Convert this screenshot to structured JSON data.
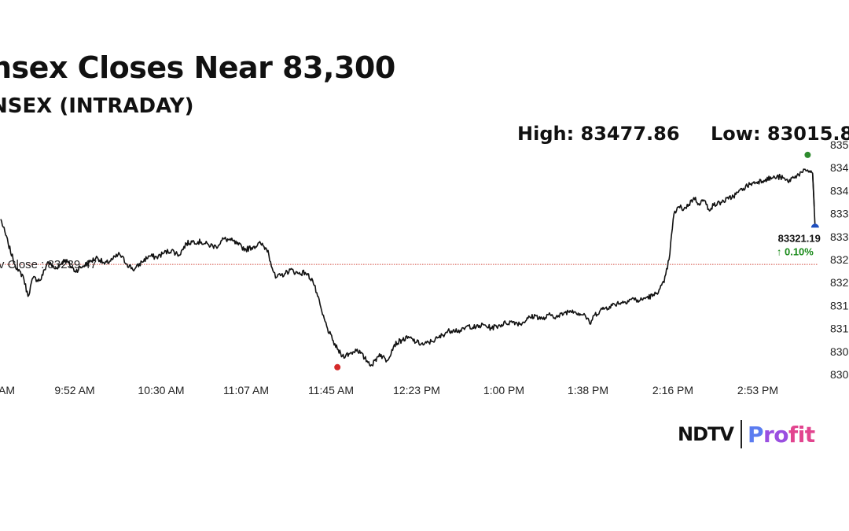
{
  "header": {
    "title": "nsex Closes Near 83,300",
    "subtitle": "NSEX (INTRADAY)",
    "high_label": "High: 83477.86",
    "low_label": "Low: 83015.8"
  },
  "brand": {
    "ndtv": "NDTV",
    "profit": "Profit"
  },
  "chart_data": {
    "type": "line",
    "x_tick_labels": [
      "AM",
      "9:52 AM",
      "10:30 AM",
      "11:07 AM",
      "11:45 AM",
      "12:23 PM",
      "1:00 PM",
      "1:38 PM",
      "2:16 PM",
      "2:53 PM"
    ],
    "y_tick_labels": [
      "835",
      "834",
      "834",
      "833",
      "833",
      "832",
      "832",
      "831",
      "831",
      "830",
      "830"
    ],
    "y_tick_values": [
      83500,
      83450,
      83400,
      83350,
      83300,
      83250,
      83200,
      83150,
      83100,
      83050,
      83000
    ],
    "ylim": [
      83000,
      83500
    ],
    "prev_close": {
      "label": "v Close : 83239.47",
      "value": 83239.47
    },
    "last": {
      "value_label": "83321.19",
      "change_label": "↑ 0.10%",
      "value": 83321.19
    },
    "high_value": 83477.86,
    "low_value": 83015.8,
    "series": [
      {
        "values": [
          [
            0,
            83338
          ],
          [
            3,
            83285
          ],
          [
            5,
            83250
          ],
          [
            7,
            83225
          ],
          [
            9,
            83215
          ],
          [
            11,
            83170
          ],
          [
            13,
            83210
          ],
          [
            16,
            83205
          ],
          [
            19,
            83245
          ],
          [
            22,
            83230
          ],
          [
            26,
            83250
          ],
          [
            30,
            83225
          ],
          [
            33,
            83235
          ],
          [
            36,
            83245
          ],
          [
            39,
            83255
          ],
          [
            42,
            83240
          ],
          [
            45,
            83250
          ],
          [
            48,
            83262
          ],
          [
            51,
            83240
          ],
          [
            54,
            83228
          ],
          [
            57,
            83245
          ],
          [
            60,
            83258
          ],
          [
            63,
            83255
          ],
          [
            66,
            83265
          ],
          [
            69,
            83270
          ],
          [
            72,
            83260
          ],
          [
            75,
            83285
          ],
          [
            78,
            83290
          ],
          [
            81,
            83288
          ],
          [
            84,
            83282
          ],
          [
            87,
            83278
          ],
          [
            90,
            83295
          ],
          [
            93,
            83292
          ],
          [
            96,
            83282
          ],
          [
            99,
            83272
          ],
          [
            102,
            83278
          ],
          [
            105,
            83285
          ],
          [
            108,
            83270
          ],
          [
            109,
            83245
          ],
          [
            111,
            83210
          ],
          [
            113,
            83215
          ],
          [
            115,
            83220
          ],
          [
            117,
            83228
          ],
          [
            120,
            83220
          ],
          [
            123,
            83222
          ],
          [
            126,
            83205
          ],
          [
            128,
            83170
          ],
          [
            130,
            83130
          ],
          [
            132,
            83100
          ],
          [
            134,
            83075
          ],
          [
            136,
            83055
          ],
          [
            138,
            83040
          ],
          [
            141,
            83045
          ],
          [
            144,
            83055
          ],
          [
            147,
            83035
          ],
          [
            150,
            83020
          ],
          [
            153,
            83045
          ],
          [
            156,
            83030
          ],
          [
            159,
            83065
          ],
          [
            162,
            83075
          ],
          [
            165,
            83080
          ],
          [
            168,
            83070
          ],
          [
            171,
            83065
          ],
          [
            174,
            83072
          ],
          [
            177,
            83080
          ],
          [
            180,
            83092
          ],
          [
            183,
            83098
          ],
          [
            186,
            83094
          ],
          [
            189,
            83106
          ],
          [
            192,
            83102
          ],
          [
            195,
            83108
          ],
          [
            198,
            83101
          ],
          [
            201,
            83106
          ],
          [
            204,
            83112
          ],
          [
            207,
            83115
          ],
          [
            210,
            83110
          ],
          [
            213,
            83122
          ],
          [
            216,
            83128
          ],
          [
            219,
            83120
          ],
          [
            222,
            83130
          ],
          [
            225,
            83125
          ],
          [
            228,
            83135
          ],
          [
            231,
            83140
          ],
          [
            234,
            83132
          ],
          [
            236,
            83130
          ],
          [
            238,
            83110
          ],
          [
            240,
            83130
          ],
          [
            243,
            83142
          ],
          [
            246,
            83148
          ],
          [
            249,
            83155
          ],
          [
            252,
            83158
          ],
          [
            255,
            83165
          ],
          [
            258,
            83160
          ],
          [
            261,
            83168
          ],
          [
            264,
            83172
          ],
          [
            266,
            83185
          ],
          [
            268,
            83200
          ],
          [
            270,
            83250
          ],
          [
            272,
            83350
          ],
          [
            274,
            83365
          ],
          [
            276,
            83360
          ],
          [
            278,
            83370
          ],
          [
            280,
            83385
          ],
          [
            282,
            83372
          ],
          [
            284,
            83380
          ],
          [
            286,
            83360
          ],
          [
            288,
            83368
          ],
          [
            291,
            83375
          ],
          [
            294,
            83382
          ],
          [
            297,
            83392
          ],
          [
            300,
            83405
          ],
          [
            303,
            83415
          ],
          [
            306,
            83420
          ],
          [
            309,
            83425
          ],
          [
            312,
            83428
          ],
          [
            315,
            83430
          ],
          [
            318,
            83420
          ],
          [
            321,
            83432
          ],
          [
            324,
            83440
          ],
          [
            326,
            83445
          ],
          [
            328,
            83438
          ],
          [
            329,
            83330
          ]
        ]
      }
    ],
    "colors": {
      "line": "#111111",
      "prev_close_line": "#d24a3c",
      "high_dot": "#2e8b2e",
      "low_dot": "#d42a2a",
      "last_marker": "#1f4fbf",
      "change": "#1a8a1a"
    }
  }
}
